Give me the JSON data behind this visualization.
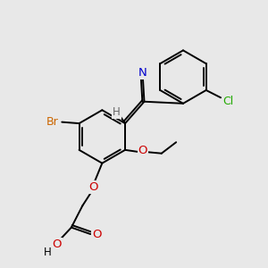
{
  "bg_color": "#e8e8e8",
  "bond_color": "#000000",
  "atom_colors": {
    "N": "#0000cd",
    "O": "#cc0000",
    "Br": "#cc6600",
    "Cl": "#22aa00",
    "H": "#666666",
    "C": "#000000"
  },
  "lw": 1.4,
  "fs": 8.5
}
